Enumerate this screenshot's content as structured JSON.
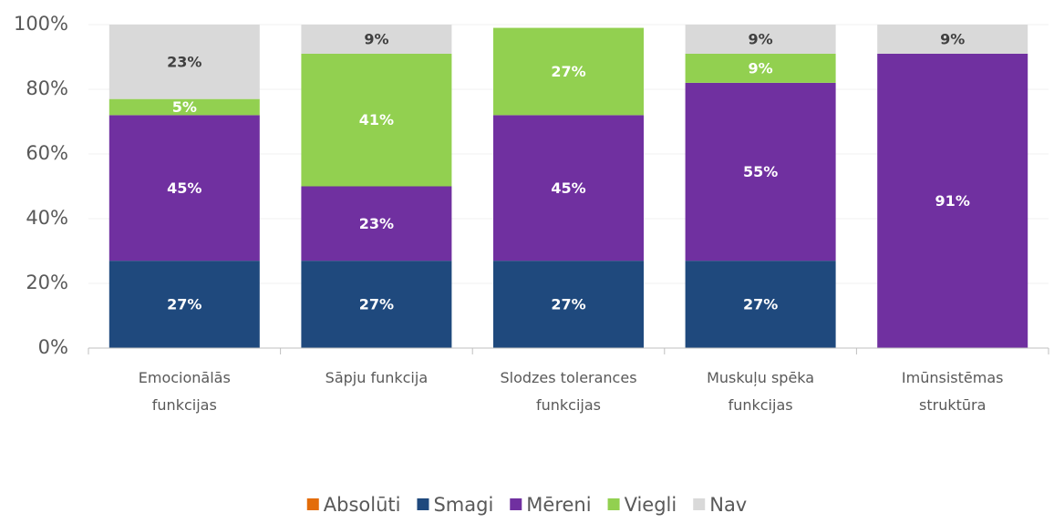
{
  "chart_data": {
    "type": "stacked_bar",
    "categories": [
      "Emocionālās funkcijas",
      "Sāpju funkcija",
      "Slodzes tolerances funkcijas",
      "Muskuļu spēka funkcijas",
      "Imūnsistēmas struktūra"
    ],
    "series": [
      {
        "name": "Absolūti",
        "color": "#e36c09",
        "values": [
          0,
          0,
          0,
          0,
          0
        ],
        "value_labels": [
          null,
          null,
          null,
          null,
          null
        ]
      },
      {
        "name": "Smagi",
        "color": "#1f497d",
        "values": [
          27,
          27,
          27,
          27,
          0
        ],
        "value_labels": [
          "27%",
          "27%",
          "27%",
          "27%",
          null
        ]
      },
      {
        "name": "Mēreni",
        "color": "#7030a0",
        "values": [
          45,
          23,
          45,
          55,
          91
        ],
        "value_labels": [
          "45%",
          "23%",
          "45%",
          "55%",
          "91%"
        ]
      },
      {
        "name": "Viegli",
        "color": "#92d050",
        "values": [
          5,
          41,
          27,
          9,
          0
        ],
        "value_labels": [
          "5%",
          "41%",
          "27%",
          "9%",
          null
        ]
      },
      {
        "name": "Nav",
        "color": "#d9d9d9",
        "values": [
          23,
          9,
          0,
          9,
          9
        ],
        "value_labels": [
          "23%",
          "9%",
          null,
          "9%",
          "9%"
        ]
      }
    ],
    "ylim": [
      0,
      100
    ],
    "yticks": [
      {
        "value": 0,
        "label": "0%"
      },
      {
        "value": 20,
        "label": "20%"
      },
      {
        "value": 40,
        "label": "40%"
      },
      {
        "value": 60,
        "label": "60%"
      },
      {
        "value": 80,
        "label": "80%"
      },
      {
        "value": 100,
        "label": "100%"
      }
    ],
    "grid": true,
    "legend": "bottom"
  }
}
